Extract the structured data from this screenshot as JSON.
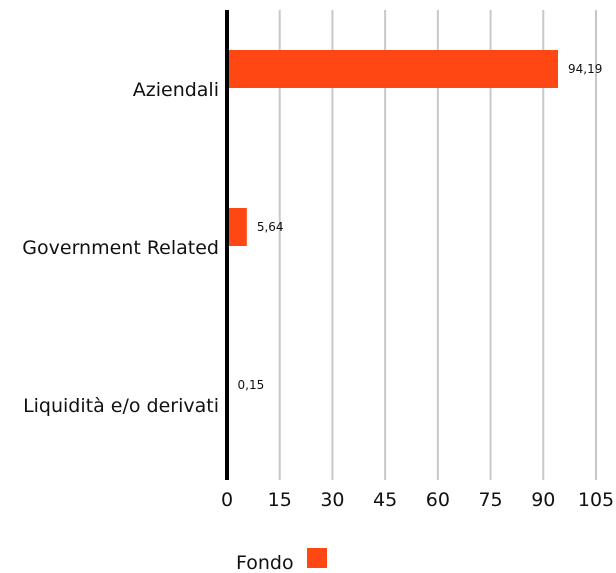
{
  "chart_data": {
    "type": "bar",
    "orientation": "horizontal",
    "categories": [
      "Aziendali",
      "Government Related",
      "Liquidità e/o derivati"
    ],
    "series": [
      {
        "name": "Fondo",
        "values": [
          94.19,
          5.64,
          0.15
        ],
        "labels": [
          "94,19",
          "5,64",
          "0,15"
        ]
      }
    ],
    "xticks": [
      "0",
      "15",
      "30",
      "45",
      "60",
      "75",
      "90",
      "105"
    ],
    "xlim": [
      0,
      105
    ],
    "grid": true,
    "legend_position": "bottom-left",
    "colors": {
      "bar": "#ff4713",
      "grid": "#c8c8c8",
      "axis": "#000000"
    }
  }
}
